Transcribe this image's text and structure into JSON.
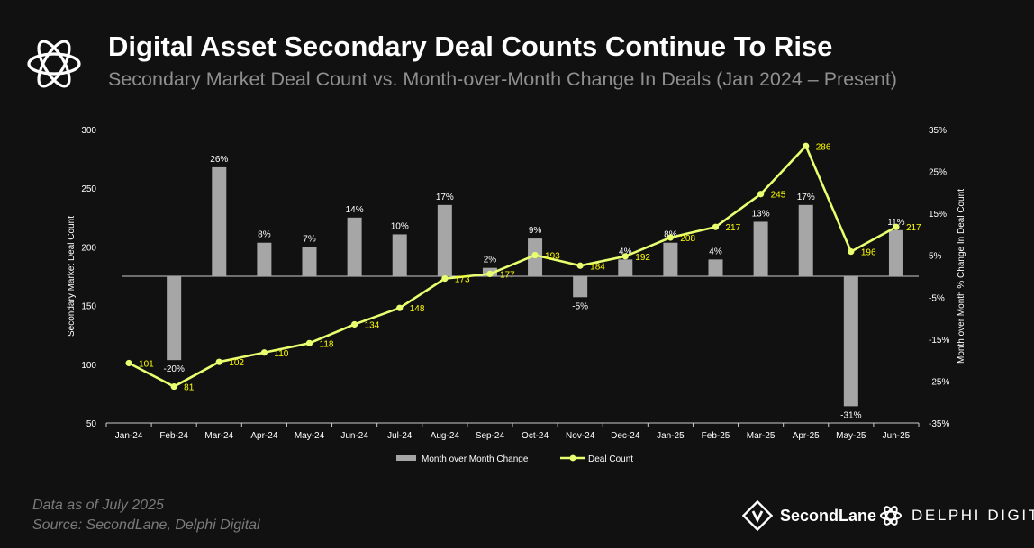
{
  "header": {
    "title": "Digital Asset Secondary Deal Counts Continue To Rise",
    "subtitle": "Secondary Market Deal Count vs. Month-over-Month Change In Deals (Jan 2024 – Present)"
  },
  "footer": {
    "data_note": "Data as of July 2025",
    "source": "Source:  SecondLane,  Delphi Digital",
    "brand_secondlane": "SecondLane",
    "brand_delphi": "DELPHI DIGITAL"
  },
  "colors": {
    "background": "#111111",
    "bar": "#a6a6a6",
    "line": "#e8ff6f",
    "line_label": "#ffff00",
    "axis": "#cccccc"
  },
  "chart_data": {
    "type": "bar+line",
    "categories": [
      "Jan-24",
      "Feb-24",
      "Mar-24",
      "Apr-24",
      "May-24",
      "Jun-24",
      "Jul-24",
      "Aug-24",
      "Sep-24",
      "Oct-24",
      "Nov-24",
      "Dec-24",
      "Jan-25",
      "Feb-25",
      "Mar-25",
      "Apr-25",
      "May-25",
      "Jun-25"
    ],
    "series": [
      {
        "name": "Month over Month Change",
        "type": "bar",
        "axis": "right",
        "values": [
          null,
          -20,
          26,
          8,
          7,
          14,
          10,
          17,
          2,
          9,
          -5,
          4,
          8,
          4,
          13,
          17,
          -31,
          11
        ],
        "labels": [
          "",
          "-20%",
          "26%",
          "8%",
          "7%",
          "14%",
          "10%",
          "17%",
          "2%",
          "9%",
          "-5%",
          "4%",
          "8%",
          "4%",
          "13%",
          "17%",
          "-31%",
          "11%"
        ]
      },
      {
        "name": "Deal Count",
        "type": "line",
        "axis": "left",
        "values": [
          101,
          81,
          102,
          110,
          118,
          134,
          148,
          173,
          177,
          193,
          184,
          192,
          208,
          217,
          245,
          286,
          196,
          217
        ]
      }
    ],
    "ylabel": "Secondary Market Deal Count",
    "ylim": [
      50,
      300
    ],
    "yticks": [
      50,
      100,
      150,
      200,
      250,
      300
    ],
    "y2label": "Month over Month % Change In Deal Count",
    "y2lim": [
      -35,
      35
    ],
    "y2ticks": [
      "-35%",
      "-25%",
      "-15%",
      "-5%",
      "5%",
      "15%",
      "25%",
      "35%"
    ],
    "y2tick_values": [
      -35,
      -25,
      -15,
      -5,
      5,
      15,
      25,
      35
    ],
    "legend": [
      "Month over Month Change",
      "Deal Count"
    ],
    "legend_position": "bottom-center"
  }
}
